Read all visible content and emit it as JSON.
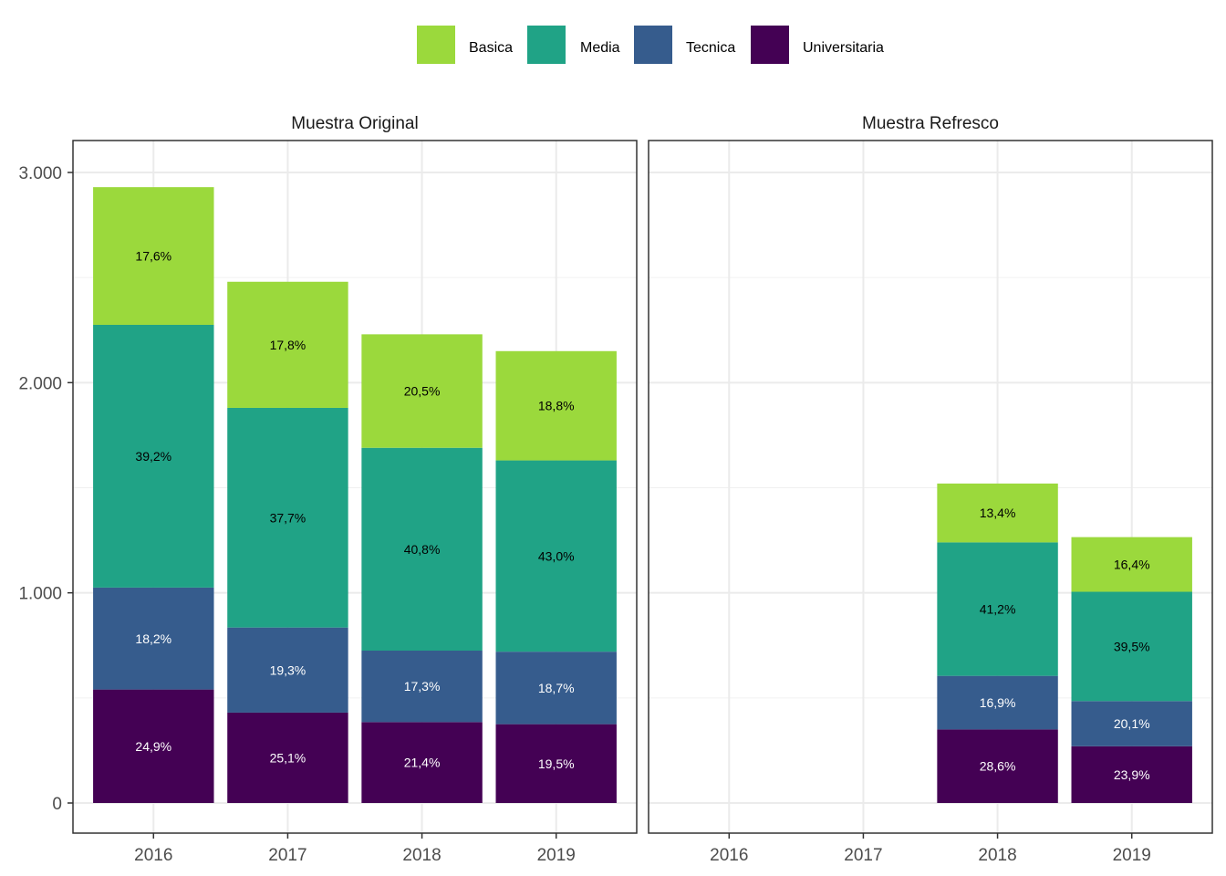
{
  "chart_data": {
    "type": "bar",
    "stacked": true,
    "legend": {
      "placement": "top",
      "entries": [
        {
          "name": "Basica",
          "color": "#9bd93c"
        },
        {
          "name": "Media",
          "color": "#20a386"
        },
        {
          "name": "Tecnica",
          "color": "#365c8d"
        },
        {
          "name": "Universitaria",
          "color": "#440154"
        }
      ]
    },
    "ylim": [
      0,
      3000
    ],
    "yticks": [
      {
        "value": 0,
        "label": "0"
      },
      {
        "value": 1000,
        "label": "1.000"
      },
      {
        "value": 2000,
        "label": "2.000"
      },
      {
        "value": 3000,
        "label": "3.000"
      }
    ],
    "categories": [
      "2016",
      "2017",
      "2018",
      "2019"
    ],
    "grid": true,
    "panels": [
      {
        "title": "Muestra Original",
        "bars": [
          {
            "year": "2016",
            "segments": [
              {
                "series": "Universitaria",
                "value": 540,
                "label": "24,9%"
              },
              {
                "series": "Tecnica",
                "value": 485,
                "label": "18,2%"
              },
              {
                "series": "Media",
                "value": 1250,
                "label": "39,2%"
              },
              {
                "series": "Basica",
                "value": 655,
                "label": "17,6%"
              }
            ]
          },
          {
            "year": "2017",
            "segments": [
              {
                "series": "Universitaria",
                "value": 430,
                "label": "25,1%"
              },
              {
                "series": "Tecnica",
                "value": 405,
                "label": "19,3%"
              },
              {
                "series": "Media",
                "value": 1045,
                "label": "37,7%"
              },
              {
                "series": "Basica",
                "value": 600,
                "label": "17,8%"
              }
            ]
          },
          {
            "year": "2018",
            "segments": [
              {
                "series": "Universitaria",
                "value": 385,
                "label": "21,4%"
              },
              {
                "series": "Tecnica",
                "value": 340,
                "label": "17,3%"
              },
              {
                "series": "Media",
                "value": 965,
                "label": "40,8%"
              },
              {
                "series": "Basica",
                "value": 540,
                "label": "20,5%"
              }
            ]
          },
          {
            "year": "2019",
            "segments": [
              {
                "series": "Universitaria",
                "value": 375,
                "label": "19,5%"
              },
              {
                "series": "Tecnica",
                "value": 345,
                "label": "18,7%"
              },
              {
                "series": "Media",
                "value": 910,
                "label": "43,0%"
              },
              {
                "series": "Basica",
                "value": 520,
                "label": "18,8%"
              }
            ]
          }
        ]
      },
      {
        "title": "Muestra Refresco",
        "bars": [
          {
            "year": "2018",
            "segments": [
              {
                "series": "Universitaria",
                "value": 350,
                "label": "28,6%"
              },
              {
                "series": "Tecnica",
                "value": 255,
                "label": "16,9%"
              },
              {
                "series": "Media",
                "value": 635,
                "label": "41,2%"
              },
              {
                "series": "Basica",
                "value": 280,
                "label": "13,4%"
              }
            ]
          },
          {
            "year": "2019",
            "segments": [
              {
                "series": "Universitaria",
                "value": 270,
                "label": "23,9%"
              },
              {
                "series": "Tecnica",
                "value": 215,
                "label": "20,1%"
              },
              {
                "series": "Media",
                "value": 520,
                "label": "39,5%"
              },
              {
                "series": "Basica",
                "value": 260,
                "label": "16,4%"
              }
            ]
          }
        ]
      }
    ]
  }
}
